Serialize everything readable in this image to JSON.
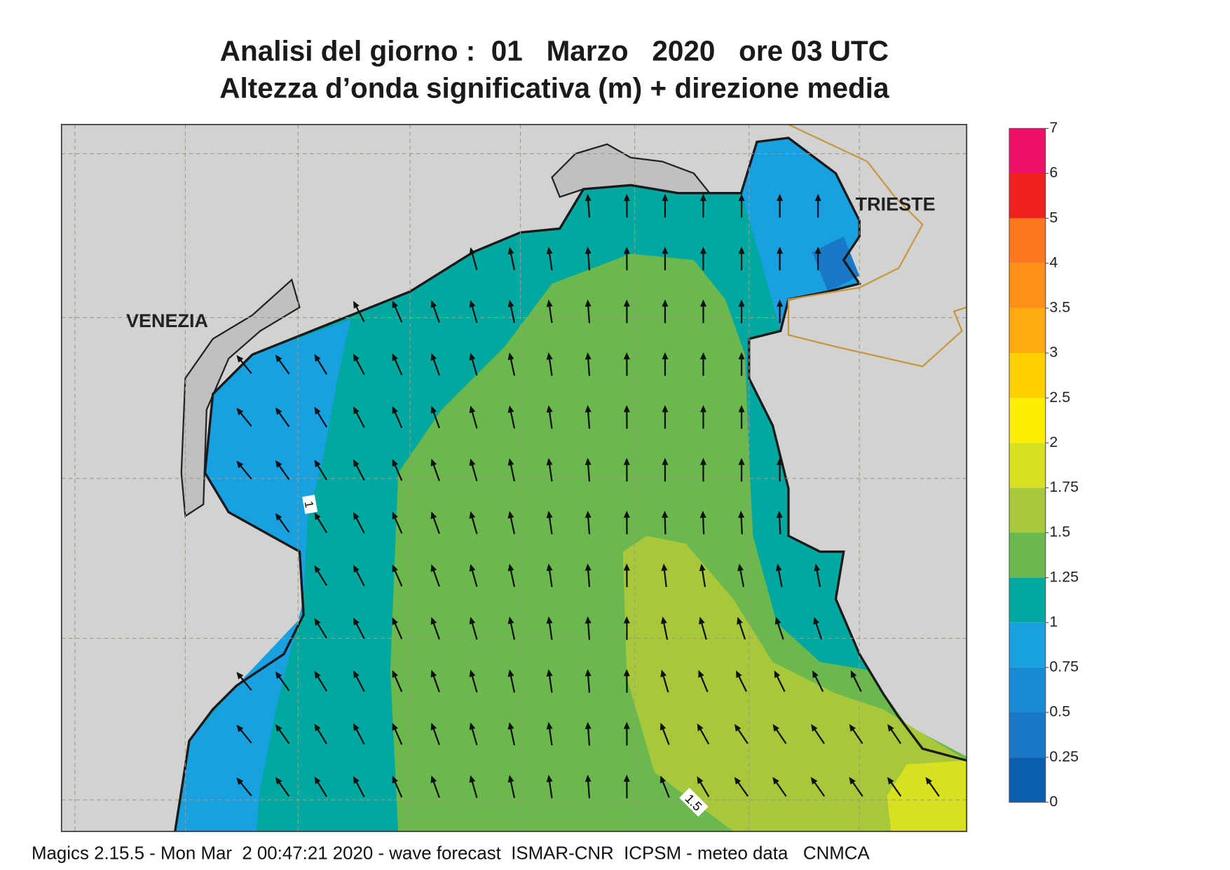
{
  "header": {
    "title_line1": "Analisi del giorno :  01   Marzo   2020   ore 03 UTC",
    "title_line2": "Altezza d’onda significativa (m) + direzione media"
  },
  "map": {
    "labels": [
      "VENEZIA",
      "TRIESTE"
    ],
    "contours": [
      1,
      1.5
    ]
  },
  "colorbar": {
    "ticks": [
      0,
      0.25,
      0.5,
      0.75,
      1,
      1.25,
      1.5,
      1.75,
      2,
      2.5,
      3,
      3.5,
      4,
      5,
      6,
      7
    ],
    "colors": [
      "#0a5fb0",
      "#1a78c8",
      "#1a8ad6",
      "#18a0e0",
      "#00a8a0",
      "#6ab84e",
      "#a8c83c",
      "#d8e020",
      "#ffee00",
      "#ffd000",
      "#ffaa10",
      "#ff9018",
      "#ff7820",
      "#ee2020",
      "#ee1068"
    ]
  },
  "footer": "Magics 2.15.5 - Mon Mar  2 00:47:21 2020 - wave forecast  ISMAR-CNR  ICPSM - meteo data   CNMCA"
}
